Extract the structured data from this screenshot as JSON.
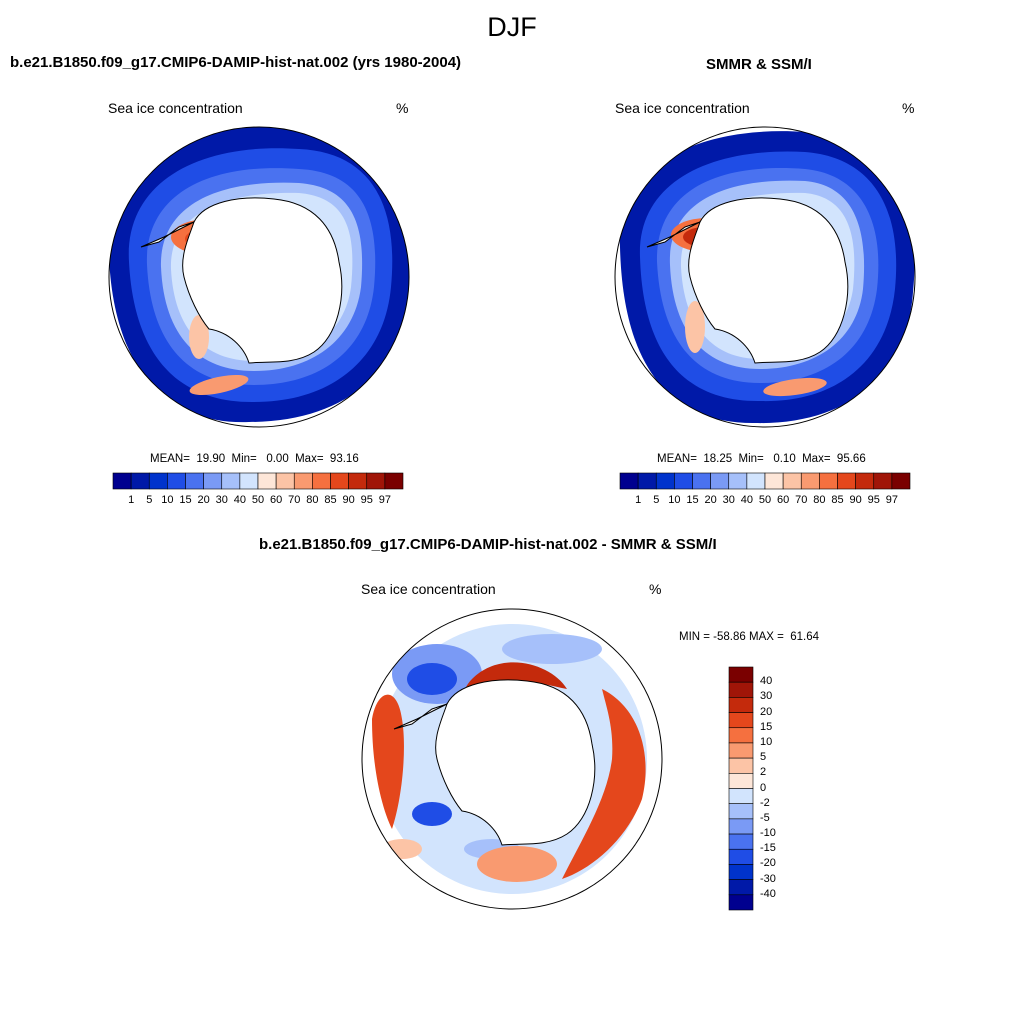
{
  "figure": {
    "title": "DJF"
  },
  "panels": [
    {
      "title": "b.e21.B1850.f09_g17.CMIP6-DAMIP-hist-nat.002 (yrs 1980-2004)",
      "variable": "Sea ice concentration",
      "units": "%",
      "stats": "MEAN=  19.90  Min=   0.00  Max=  93.16"
    },
    {
      "title": "SMMR & SSM/I",
      "variable": "Sea ice concentration",
      "units": "%",
      "stats": "MEAN=  18.25  Min=   0.10  Max=  95.66"
    },
    {
      "title": "b.e21.B1850.f09_g17.CMIP6-DAMIP-hist-nat.002 - SMMR & SSM/I",
      "variable": "Sea ice concentration",
      "units": "%",
      "stats": "MIN = -58.86 MAX =  61.64"
    }
  ],
  "colorbars": {
    "concentration": {
      "labels": [
        "1",
        "5",
        "10",
        "15",
        "20",
        "30",
        "40",
        "50",
        "60",
        "70",
        "80",
        "85",
        "90",
        "95",
        "97"
      ],
      "colors": [
        "#00008f",
        "#0019a8",
        "#0033cc",
        "#1f4de6",
        "#4a72f0",
        "#7a9af5",
        "#a6c0fa",
        "#d2e4fd",
        "#fde6d8",
        "#fcc4a6",
        "#f99a70",
        "#f5703f",
        "#e4471c",
        "#c42a0c",
        "#a01508",
        "#7a0000"
      ]
    },
    "difference": {
      "labels": [
        "40",
        "30",
        "20",
        "15",
        "10",
        "5",
        "2",
        "0",
        "-2",
        "-5",
        "-10",
        "-15",
        "-20",
        "-30",
        "-40"
      ],
      "colors": [
        "#7a0000",
        "#a01508",
        "#c42a0c",
        "#e4471c",
        "#f5703f",
        "#f99a70",
        "#fcc4a6",
        "#fde6d8",
        "#d2e4fd",
        "#a6c0fa",
        "#7a9af5",
        "#4a72f0",
        "#1f4de6",
        "#0033cc",
        "#0019a8",
        "#00008f"
      ]
    }
  }
}
